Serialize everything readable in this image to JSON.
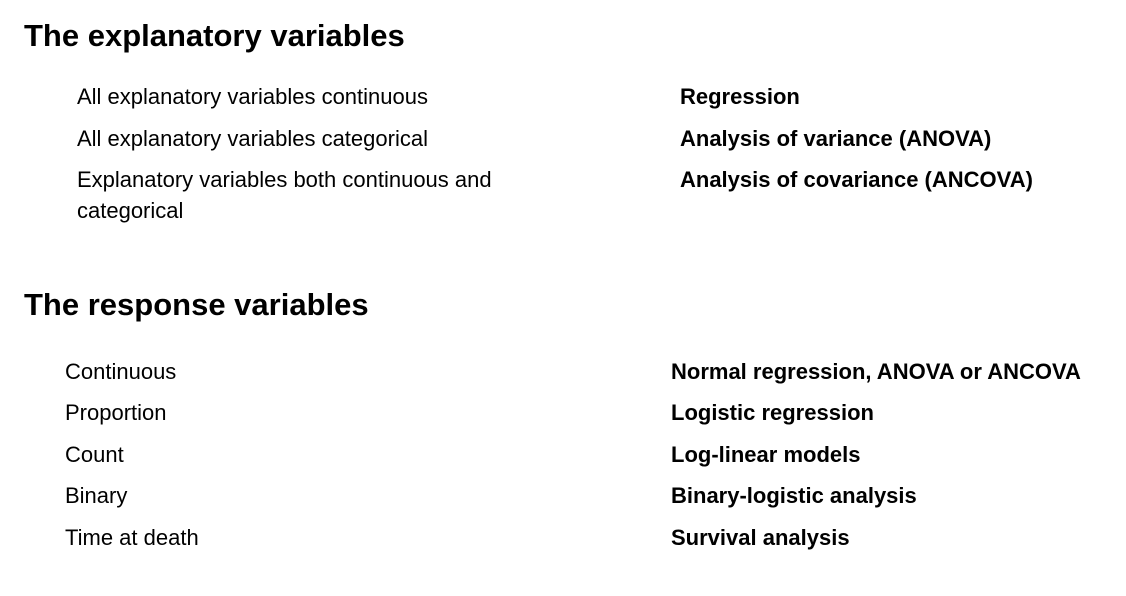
{
  "explanatory": {
    "heading": "The explanatory variables",
    "rows": [
      {
        "condition": "All explanatory variables continuous",
        "method": "Regression"
      },
      {
        "condition": "All explanatory variables categorical",
        "method": "Analysis of variance (ANOVA)"
      },
      {
        "condition": "Explanatory variables both continuous and categorical",
        "method": "Analysis of covariance (ANCOVA)"
      }
    ]
  },
  "response": {
    "heading": "The response variables",
    "rows": [
      {
        "condition": "Continuous",
        "method": "Normal regression, ANOVA or ANCOVA"
      },
      {
        "condition": "Proportion",
        "method": "Logistic regression"
      },
      {
        "condition": "Count",
        "method": "Log-linear models"
      },
      {
        "condition": "Binary",
        "method": "Binary-logistic analysis"
      },
      {
        "condition": "Time at death",
        "method": "Survival analysis"
      }
    ]
  }
}
